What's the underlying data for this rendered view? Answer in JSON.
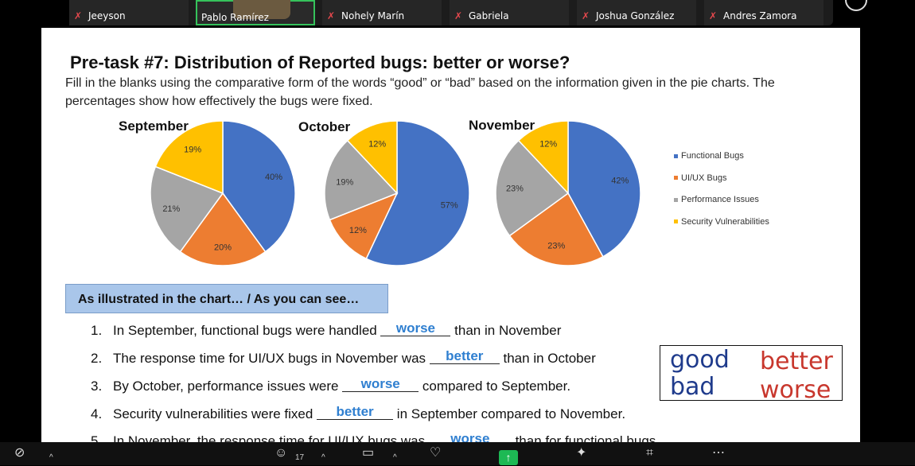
{
  "participants": [
    {
      "name": "Jeeyson",
      "muted": true,
      "active": false
    },
    {
      "name": "Pablo Ramírez",
      "muted": false,
      "active": true
    },
    {
      "name": "Nohely Marín",
      "muted": true,
      "active": false
    },
    {
      "name": "Gabriela",
      "muted": true,
      "active": false
    },
    {
      "name": "Joshua González",
      "muted": true,
      "active": false
    },
    {
      "name": "Andres Zamora",
      "muted": true,
      "active": false
    }
  ],
  "slide": {
    "title": "Pre-task #7: Distribution of Reported bugs: better or worse?",
    "instructions": "Fill in the blanks using the comparative form of the words “good” or “bad” based on the information given in the pie charts. The percentages show how effectively the bugs were fixed.",
    "banner": "As illustrated in the chart…  / As you can see…",
    "questions": [
      {
        "num": "1.",
        "before": "In September, functional bugs were handled ",
        "answer": "worse",
        "after": " than in November"
      },
      {
        "num": "2.",
        "before": "The response time for UI/UX bugs in November was ",
        "answer": "better",
        "after": " than in October"
      },
      {
        "num": "3.",
        "before": "By October,  performance issues were ",
        "answer": "worse",
        "after": " compared to September."
      },
      {
        "num": "4.",
        "before": "Security vulnerabilities were fixed ",
        "answer": "better",
        "after": " in September compared to November."
      },
      {
        "num": "5.",
        "before": "In November, the response time for UI/UX bugs was ",
        "answer": "worse",
        "after": " than for functional bugs"
      }
    ],
    "word_bank": {
      "w1": "good",
      "w2": "better",
      "w3": "bad",
      "w4": "worse"
    }
  },
  "chart_data": [
    {
      "type": "pie",
      "title": "September",
      "categories": [
        "Functional Bugs",
        "UI/UX Bugs",
        "Performance Issues",
        "Security Vulnerabilities"
      ],
      "values": [
        40,
        20,
        21,
        19
      ],
      "labels": [
        "40%",
        "20%",
        "21%",
        "19%"
      ]
    },
    {
      "type": "pie",
      "title": "October",
      "categories": [
        "Functional Bugs",
        "UI/UX Bugs",
        "Performance Issues",
        "Security Vulnerabilities"
      ],
      "values": [
        57,
        12,
        19,
        12
      ],
      "labels": [
        "57%",
        "12%",
        "19%",
        "12%"
      ]
    },
    {
      "type": "pie",
      "title": "November",
      "categories": [
        "Functional Bugs",
        "UI/UX Bugs",
        "Performance Issues",
        "Security Vulnerabilities"
      ],
      "values": [
        42,
        23,
        23,
        12
      ],
      "labels": [
        "42%",
        "23%",
        "23%",
        "12%"
      ]
    }
  ],
  "legend": {
    "placement": "right",
    "items": [
      {
        "label": "Functional Bugs",
        "color": "#4472c4"
      },
      {
        "label": "UI/UX Bugs",
        "color": "#ed7d31"
      },
      {
        "label": "Performance Issues",
        "color": "#a5a5a5"
      },
      {
        "label": "Security Vulnerabilities",
        "color": "#ffc000"
      }
    ]
  },
  "toolbar": {
    "participants_count": "17",
    "items": [
      "video-muted-icon",
      "participants-icon",
      "chat-icon",
      "reactions-icon",
      "share-screen-icon",
      "ai-companion-icon",
      "apps-icon",
      "more-icon"
    ]
  }
}
